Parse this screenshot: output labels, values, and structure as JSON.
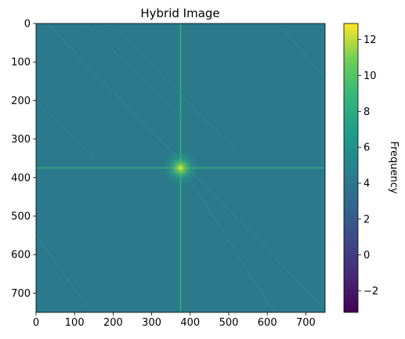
{
  "chart_data": {
    "type": "heatmap",
    "title": "Hybrid Image",
    "xlim": [
      0,
      750
    ],
    "ylim": [
      750,
      0
    ],
    "x_ticks": [
      0,
      100,
      200,
      300,
      400,
      500,
      600,
      700
    ],
    "y_ticks": [
      0,
      100,
      200,
      300,
      400,
      500,
      600,
      700
    ],
    "colormap": "viridis",
    "background_level": 4.6,
    "center": [
      375,
      375
    ],
    "center_level": 9.5,
    "colorbar": {
      "label": "Frequency",
      "min": -3.2,
      "max": 12.9,
      "ticks": [
        -2,
        0,
        2,
        4,
        6,
        8,
        10,
        12
      ]
    }
  }
}
